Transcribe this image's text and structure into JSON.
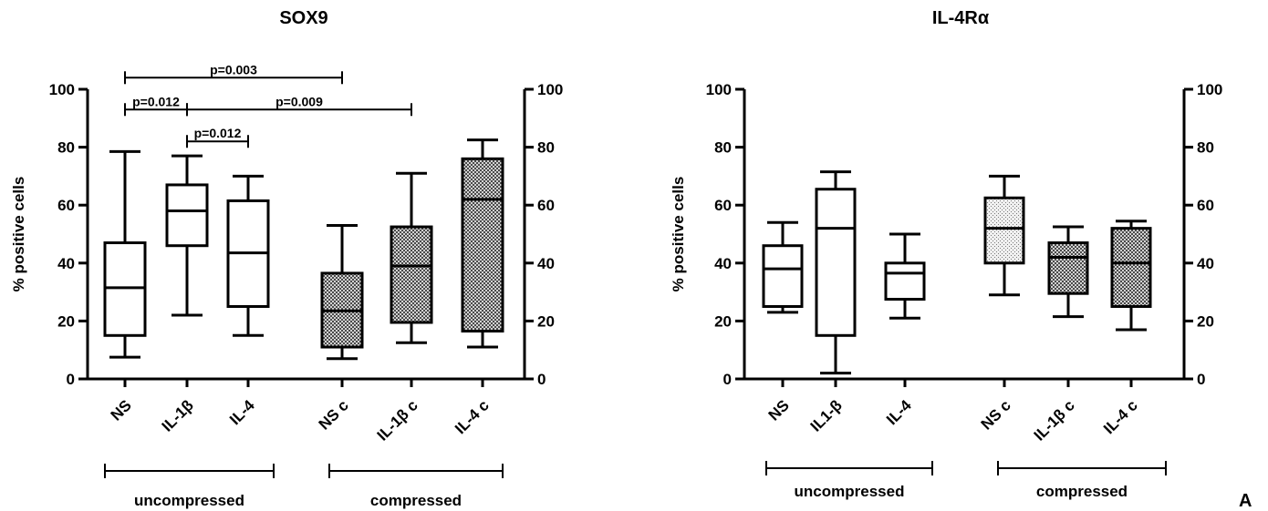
{
  "panel_letter": "A",
  "chart_data": [
    {
      "type": "box",
      "title": "SOX9",
      "ylabel": "% positive cells",
      "ylim": [
        0,
        100
      ],
      "yticks": [
        0,
        20,
        40,
        60,
        80,
        100
      ],
      "categories": [
        "NS",
        "IL-1β",
        "IL-4",
        "NS c",
        "IL-1β c",
        "IL-4 c"
      ],
      "boxes": [
        {
          "min": 7.5,
          "q1": 15,
          "median": 31.5,
          "q3": 47,
          "max": 78.5,
          "fill": "open"
        },
        {
          "min": 22,
          "q1": 46,
          "median": 58,
          "q3": 67,
          "max": 77,
          "fill": "open"
        },
        {
          "min": 15,
          "q1": 25,
          "median": 43.5,
          "q3": 61.5,
          "max": 70,
          "fill": "open"
        },
        {
          "min": 7,
          "q1": 11,
          "median": 23.5,
          "q3": 36.5,
          "max": 53,
          "fill": "hatched"
        },
        {
          "min": 12.5,
          "q1": 19.5,
          "median": 39,
          "q3": 52.5,
          "max": 71,
          "fill": "hatched"
        },
        {
          "min": 11,
          "q1": 16.5,
          "median": 62,
          "q3": 76,
          "max": 82.5,
          "fill": "hatched"
        }
      ],
      "groups": [
        {
          "label": "uncompressed",
          "from": 0,
          "to": 2
        },
        {
          "label": "compressed",
          "from": 3,
          "to": 5
        }
      ],
      "comparisons": [
        {
          "from": 0,
          "to": 3,
          "label": "p=0.003",
          "y": 104
        },
        {
          "from": 0,
          "to": 1,
          "label": "p=0.012",
          "y": 93
        },
        {
          "from": 1,
          "to": 4,
          "label": "p=0.009",
          "y": 93
        },
        {
          "from": 1,
          "to": 2,
          "label": "p=0.012",
          "y": 82
        }
      ]
    },
    {
      "type": "box",
      "title": "IL-4Rα",
      "ylabel": "% positive cells",
      "ylim": [
        0,
        100
      ],
      "yticks": [
        0,
        20,
        40,
        60,
        80,
        100
      ],
      "categories": [
        "NS",
        "IL1-β",
        "IL-4",
        "NS c",
        "IL-1β c",
        "IL-4 c"
      ],
      "boxes": [
        {
          "min": 23,
          "q1": 25,
          "median": 38,
          "q3": 46,
          "max": 54,
          "fill": "open"
        },
        {
          "min": 2,
          "q1": 15,
          "median": 52,
          "q3": 65.5,
          "max": 71.5,
          "fill": "open"
        },
        {
          "min": 21,
          "q1": 27.5,
          "median": 36.5,
          "q3": 40,
          "max": 50,
          "fill": "open"
        },
        {
          "min": 29,
          "q1": 40,
          "median": 52,
          "q3": 62.5,
          "max": 70,
          "fill": "light"
        },
        {
          "min": 21.5,
          "q1": 29.5,
          "median": 42,
          "q3": 47,
          "max": 52.5,
          "fill": "hatched"
        },
        {
          "min": 17,
          "q1": 25,
          "median": 40,
          "q3": 52,
          "max": 54.5,
          "fill": "hatched"
        }
      ],
      "groups": [
        {
          "label": "uncompressed",
          "from": 0,
          "to": 2
        },
        {
          "label": "compressed",
          "from": 3,
          "to": 5
        }
      ],
      "comparisons": []
    }
  ]
}
